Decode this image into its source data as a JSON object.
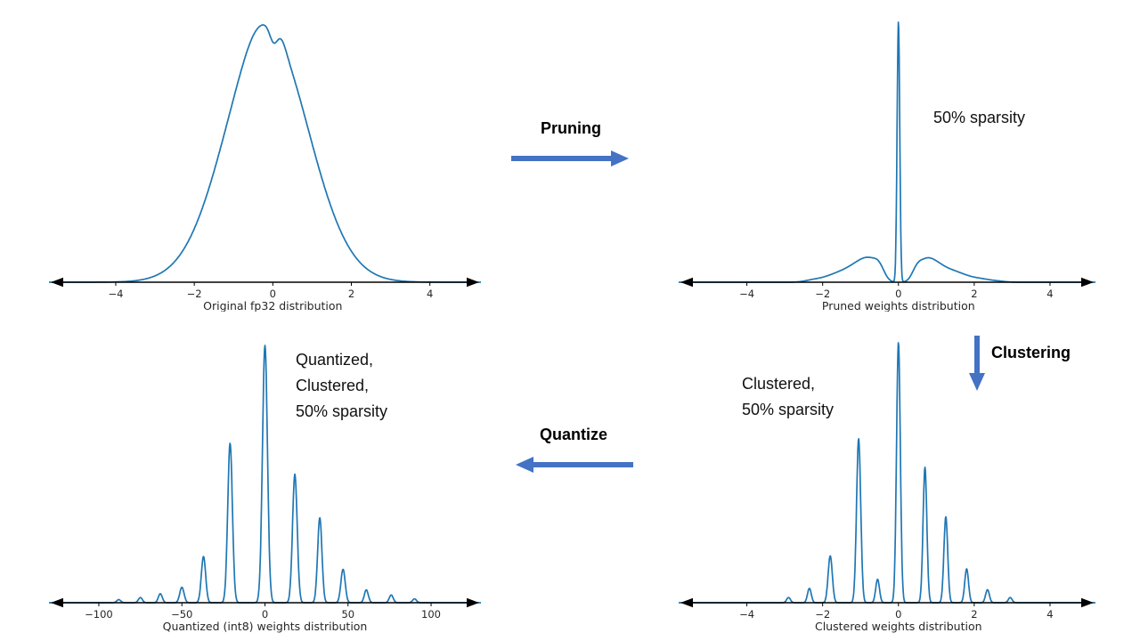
{
  "colors": {
    "curve": "#1f77b4",
    "process_arrow": "#4472c4",
    "axis": "#000000",
    "tick_text": "#262626"
  },
  "process_arrows": {
    "pruning": {
      "label": "Pruning",
      "direction": "right"
    },
    "clustering": {
      "label": "Clustering",
      "direction": "down"
    },
    "quantize": {
      "label": "Quantize",
      "direction": "left"
    }
  },
  "chart_data": [
    {
      "id": "original-fp32",
      "type": "line",
      "title": "Original fp32 distribution",
      "xlabel": "Original fp32 distribution",
      "xlim": [
        -5.7,
        5.3
      ],
      "xticks": [
        -4,
        -2,
        0,
        2,
        4
      ],
      "ylim": [
        0,
        1
      ],
      "grid": false,
      "legend": "none",
      "peaks": [
        {
          "x": -0.15,
          "h": 1.0,
          "w": 1.05
        },
        {
          "x": -0.45,
          "h": 0.03,
          "w": 0.3
        },
        {
          "x": 0.02,
          "h": -0.055,
          "w": 0.1
        },
        {
          "x": 0.22,
          "h": 0.025,
          "w": 0.12
        }
      ]
    },
    {
      "id": "pruned-weights",
      "type": "line",
      "title": "Pruned weights distribution",
      "xlabel": "Pruned weights distribution",
      "annotation": "50% sparsity",
      "xlim": [
        -5.8,
        5.2
      ],
      "xticks": [
        -4,
        -2,
        0,
        2,
        4
      ],
      "ylim": [
        0,
        1
      ],
      "grid": false,
      "legend": "none",
      "peaks": [
        {
          "x": 0,
          "h": 1.0,
          "w": 0.035
        },
        {
          "x": -0.5,
          "h": 0.045,
          "w": 0.14
        },
        {
          "x": -0.75,
          "h": 0.065,
          "w": 0.2
        },
        {
          "x": -1.05,
          "h": 0.05,
          "w": 0.22
        },
        {
          "x": -1.4,
          "h": 0.034,
          "w": 0.25
        },
        {
          "x": -1.8,
          "h": 0.018,
          "w": 0.25
        },
        {
          "x": -2.25,
          "h": 0.008,
          "w": 0.22
        },
        {
          "x": 0.48,
          "h": 0.04,
          "w": 0.13
        },
        {
          "x": 0.72,
          "h": 0.065,
          "w": 0.18
        },
        {
          "x": 1.0,
          "h": 0.05,
          "w": 0.2
        },
        {
          "x": 1.35,
          "h": 0.036,
          "w": 0.24
        },
        {
          "x": 1.75,
          "h": 0.02,
          "w": 0.25
        },
        {
          "x": 2.2,
          "h": 0.01,
          "w": 0.22
        },
        {
          "x": 2.6,
          "h": 0.004,
          "w": 0.2
        }
      ]
    },
    {
      "id": "clustered-weights",
      "type": "line",
      "title": "Clustered weights distribution",
      "xlabel": "Clustered weights distribution",
      "annotation": "Clustered,\n50% sparsity",
      "xlim": [
        -5.8,
        5.2
      ],
      "xticks": [
        -4,
        -2,
        0,
        2,
        4
      ],
      "ylim": [
        0,
        1
      ],
      "grid": false,
      "legend": "none",
      "peaks": [
        {
          "x": -2.9,
          "h": 0.02,
          "w": 0.05
        },
        {
          "x": -2.35,
          "h": 0.055,
          "w": 0.05
        },
        {
          "x": -1.8,
          "h": 0.18,
          "w": 0.055
        },
        {
          "x": -1.05,
          "h": 0.63,
          "w": 0.055
        },
        {
          "x": -0.55,
          "h": 0.09,
          "w": 0.05
        },
        {
          "x": 0,
          "h": 1.0,
          "w": 0.05
        },
        {
          "x": 0.7,
          "h": 0.52,
          "w": 0.05
        },
        {
          "x": 1.25,
          "h": 0.33,
          "w": 0.05
        },
        {
          "x": 1.8,
          "h": 0.13,
          "w": 0.05
        },
        {
          "x": 2.35,
          "h": 0.05,
          "w": 0.05
        },
        {
          "x": 2.95,
          "h": 0.02,
          "w": 0.05
        }
      ]
    },
    {
      "id": "quantized-int8-weights",
      "type": "line",
      "title": "Quantized (int8) weights distribution",
      "xlabel": "Quantized (int8) weights distribution",
      "annotation": "Quantized,\nClustered,\n50% sparsity",
      "xlim": [
        -130,
        130
      ],
      "xticks": [
        -100,
        -50,
        0,
        50,
        100
      ],
      "ylim": [
        0,
        1
      ],
      "grid": false,
      "legend": "none",
      "peaks": [
        {
          "x": -88,
          "h": 0.012,
          "w": 1.2
        },
        {
          "x": -75,
          "h": 0.02,
          "w": 1.2
        },
        {
          "x": -63,
          "h": 0.035,
          "w": 1.2
        },
        {
          "x": -50,
          "h": 0.06,
          "w": 1.3
        },
        {
          "x": -37,
          "h": 0.18,
          "w": 1.3
        },
        {
          "x": -21,
          "h": 0.62,
          "w": 1.4
        },
        {
          "x": 0,
          "h": 1.0,
          "w": 1.5
        },
        {
          "x": 18,
          "h": 0.5,
          "w": 1.4
        },
        {
          "x": 33,
          "h": 0.33,
          "w": 1.3
        },
        {
          "x": 47,
          "h": 0.13,
          "w": 1.3
        },
        {
          "x": 61,
          "h": 0.05,
          "w": 1.2
        },
        {
          "x": 76,
          "h": 0.03,
          "w": 1.2
        },
        {
          "x": 90,
          "h": 0.015,
          "w": 1.2
        }
      ]
    }
  ]
}
